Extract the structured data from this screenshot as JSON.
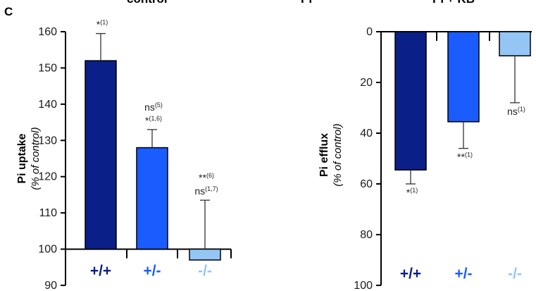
{
  "panel_label": "C",
  "top_labels": [
    "control",
    "Pi",
    "Pi + KB"
  ],
  "chart_data": [
    {
      "type": "bar",
      "categories": [
        "+/+",
        "+/-",
        "-/-"
      ],
      "category_colors": [
        "#0b1f88",
        "#1a5cff",
        "#93c6f5"
      ],
      "values": [
        152,
        128,
        97
      ],
      "error_upper": [
        159.5,
        133,
        113.5
      ],
      "annotations": [
        [
          "*(1)"
        ],
        [
          "ns(5)",
          "*(1,6)"
        ],
        [
          "**(6)",
          "ns(1,7)"
        ]
      ],
      "ylabel": "Pi uptake",
      "ylabel_sub": "(% of control)",
      "ylim": [
        90,
        160
      ],
      "yticks": [
        90,
        100,
        110,
        120,
        130,
        140,
        150,
        160
      ],
      "baseline": 100
    },
    {
      "type": "bar",
      "categories": [
        "+/+",
        "+/-",
        "-/-"
      ],
      "category_colors": [
        "#0b1f88",
        "#1a5cff",
        "#93c6f5"
      ],
      "values": [
        54.5,
        35.5,
        9.5
      ],
      "error_lower": [
        60,
        46,
        28
      ],
      "annotations": [
        [
          "*(1)"
        ],
        [
          "**(1)"
        ],
        [
          "ns(1)"
        ]
      ],
      "ylabel": "Pi efflux",
      "ylabel_sub": "(% of control)",
      "ylim": [
        0,
        100
      ],
      "yticks": [
        0,
        20,
        40,
        60,
        80,
        100
      ],
      "inverted": true
    }
  ]
}
